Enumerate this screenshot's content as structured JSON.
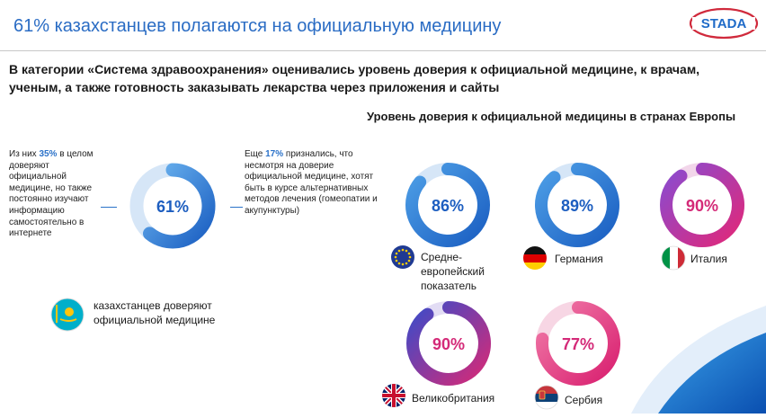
{
  "header": {
    "title": "61% казахстанцев полагаются на официальную медицину",
    "brand": "STADA"
  },
  "intro": "В категории «Система здравоохранения»  оценивались уровень доверия к официальной медицине, к врачам, ученым, а также  готовность заказывать лекарства через приложения и сайты",
  "kazakhstan": {
    "value_label": "61%",
    "value": 61,
    "note_left": {
      "prefix": "Из них ",
      "highlight": "35%",
      "text": " в целом доверяют официальной медицине, но также постоянно изучают информацию самостоятельно в интернете"
    },
    "note_right": {
      "prefix": "Еще ",
      "highlight": "17%",
      "text": " признались, что несмотря на доверие официальной медицине, хотят быть в курсе альтернативных методов лечения (гомеопатии и акупунктуры)"
    },
    "legend": "казахстанцев доверяют официальной медицине",
    "colors": {
      "start": "#4d9ee6",
      "end": "#1b5fc2",
      "track": "#d6e6f7"
    }
  },
  "europe": {
    "title": "Уровень доверия к официальной медицины в странах Европы",
    "countries": [
      {
        "name": "Средне-европейский показатель",
        "value_label": "86%",
        "value": 86,
        "flag": "eu-flag-icon",
        "color_start": "#4d9ee6",
        "color_end": "#1b5fc2",
        "track": "#d6e6f7",
        "text_color": "#1d5ec0"
      },
      {
        "name": "Германия",
        "value_label": "89%",
        "value": 89,
        "flag": "germany-flag-icon",
        "color_start": "#4d9ee6",
        "color_end": "#1b5fc2",
        "track": "#d6e6f7",
        "text_color": "#1d5ec0"
      },
      {
        "name": "Италия",
        "value_label": "90%",
        "value": 90,
        "flag": "italy-flag-icon",
        "color_start": "#8a4bd0",
        "color_end": "#e0287a",
        "track": "#f2d6ea",
        "text_color": "#d42a78"
      },
      {
        "name": "Великобритания",
        "value_label": "90%",
        "value": 90,
        "flag": "uk-flag-icon",
        "color_start": "#3d4bc8",
        "color_end": "#d42a78",
        "track": "#e2dcf4",
        "text_color": "#d42a78"
      },
      {
        "name": "Сербия",
        "value_label": "77%",
        "value": 77,
        "flag": "serbia-flag-icon",
        "color_start": "#f07aa8",
        "color_end": "#d92070",
        "track": "#f7d6e4",
        "text_color": "#d42a78"
      }
    ]
  }
}
